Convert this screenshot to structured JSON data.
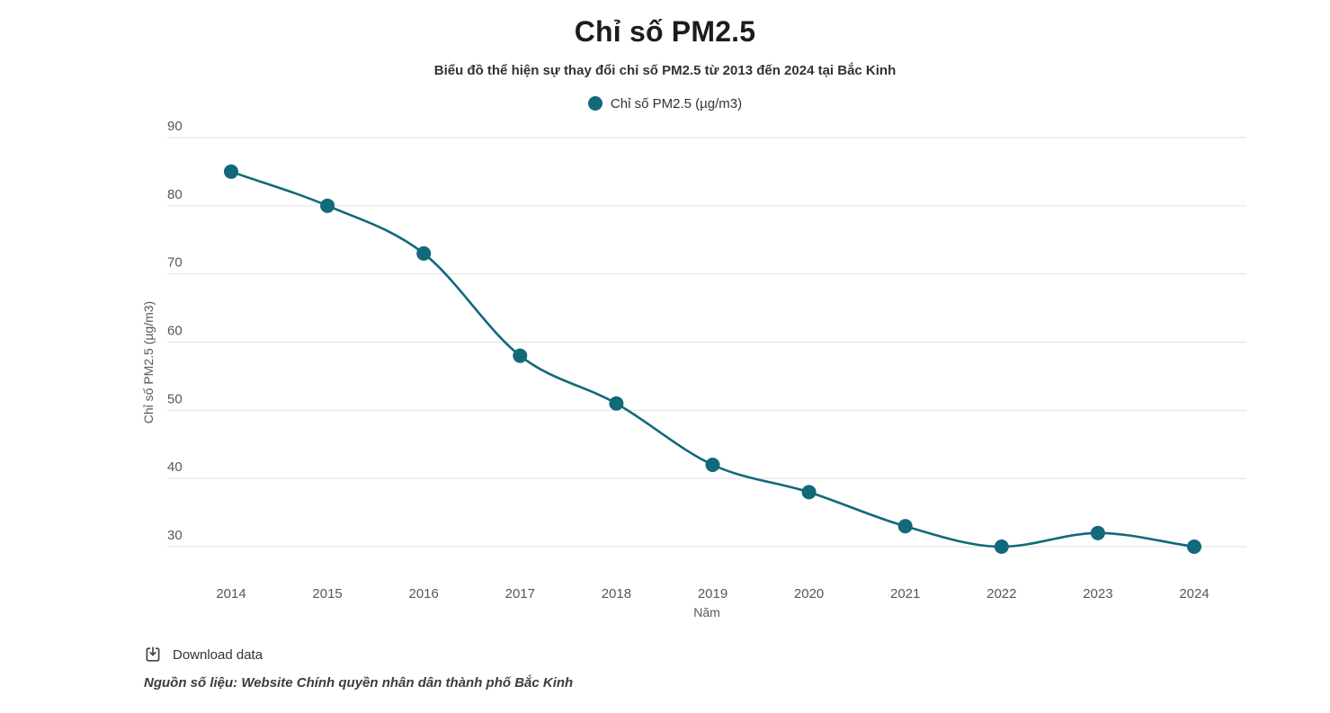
{
  "header": {
    "title": "Chỉ số PM2.5",
    "subtitle": "Biểu đồ thể hiện sự thay đổi chỉ số PM2.5 từ 2013 đến 2024 tại Bắc Kinh"
  },
  "legend": {
    "label": "Chỉ số PM2.5 (µg/m3)"
  },
  "footer": {
    "download_label": "Download data",
    "source": "Nguồn số liệu: Website Chính quyền nhân dân thành phố Bắc Kinh"
  },
  "colors": {
    "series": "#11697a",
    "grid": "#e1e1e1",
    "tick_text": "#575757",
    "title_text": "#1c1c1c"
  },
  "chart_data": {
    "type": "line",
    "title": "Chỉ số PM2.5",
    "x": [
      2014,
      2015,
      2016,
      2017,
      2018,
      2019,
      2020,
      2021,
      2022,
      2023,
      2024
    ],
    "series": [
      {
        "name": "Chỉ số PM2.5 (µg/m3)",
        "values": [
          85,
          80,
          73,
          58,
          51,
          42,
          38,
          33,
          30,
          32,
          30
        ]
      }
    ],
    "xlabel": "Năm",
    "ylabel": "Chỉ số PM2.5 (µg/m3)",
    "ylim": [
      30,
      90
    ],
    "yticks": [
      30,
      40,
      50,
      60,
      70,
      80,
      90
    ],
    "grid": true,
    "legend_position": "top",
    "marker": "circle",
    "curve": "smooth"
  }
}
